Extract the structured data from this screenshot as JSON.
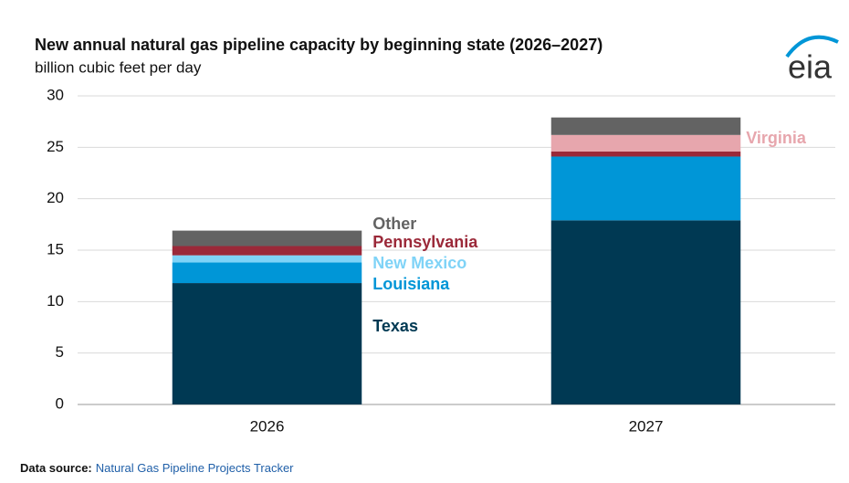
{
  "chart_data": {
    "type": "stacked_bar",
    "title": "New annual natural gas pipeline capacity by beginning state (2026–2027)",
    "subtitle": "billion cubic feet per day",
    "categories": [
      "2026",
      "2027"
    ],
    "series": [
      {
        "name": "Texas",
        "color": "#003953",
        "values": [
          11.8,
          17.9
        ]
      },
      {
        "name": "Louisiana",
        "color": "#0096d7",
        "values": [
          2.0,
          6.2
        ]
      },
      {
        "name": "New Mexico",
        "color": "#7fd3f7",
        "values": [
          0.7,
          0
        ]
      },
      {
        "name": "Pennsylvania",
        "color": "#9b2939",
        "values": [
          0.9,
          0.5
        ]
      },
      {
        "name": "Virginia",
        "color": "#e7a6ad",
        "values": [
          0,
          1.6
        ]
      },
      {
        "name": "Other",
        "color": "#636363",
        "values": [
          1.5,
          1.7
        ]
      }
    ],
    "ylim": [
      0,
      30
    ],
    "yticks": [
      0,
      5,
      10,
      15,
      20,
      25,
      30
    ],
    "grid": true,
    "source_label": "Data source:",
    "source": "Natural Gas Pipeline Projects Tracker",
    "logo": "eia"
  }
}
